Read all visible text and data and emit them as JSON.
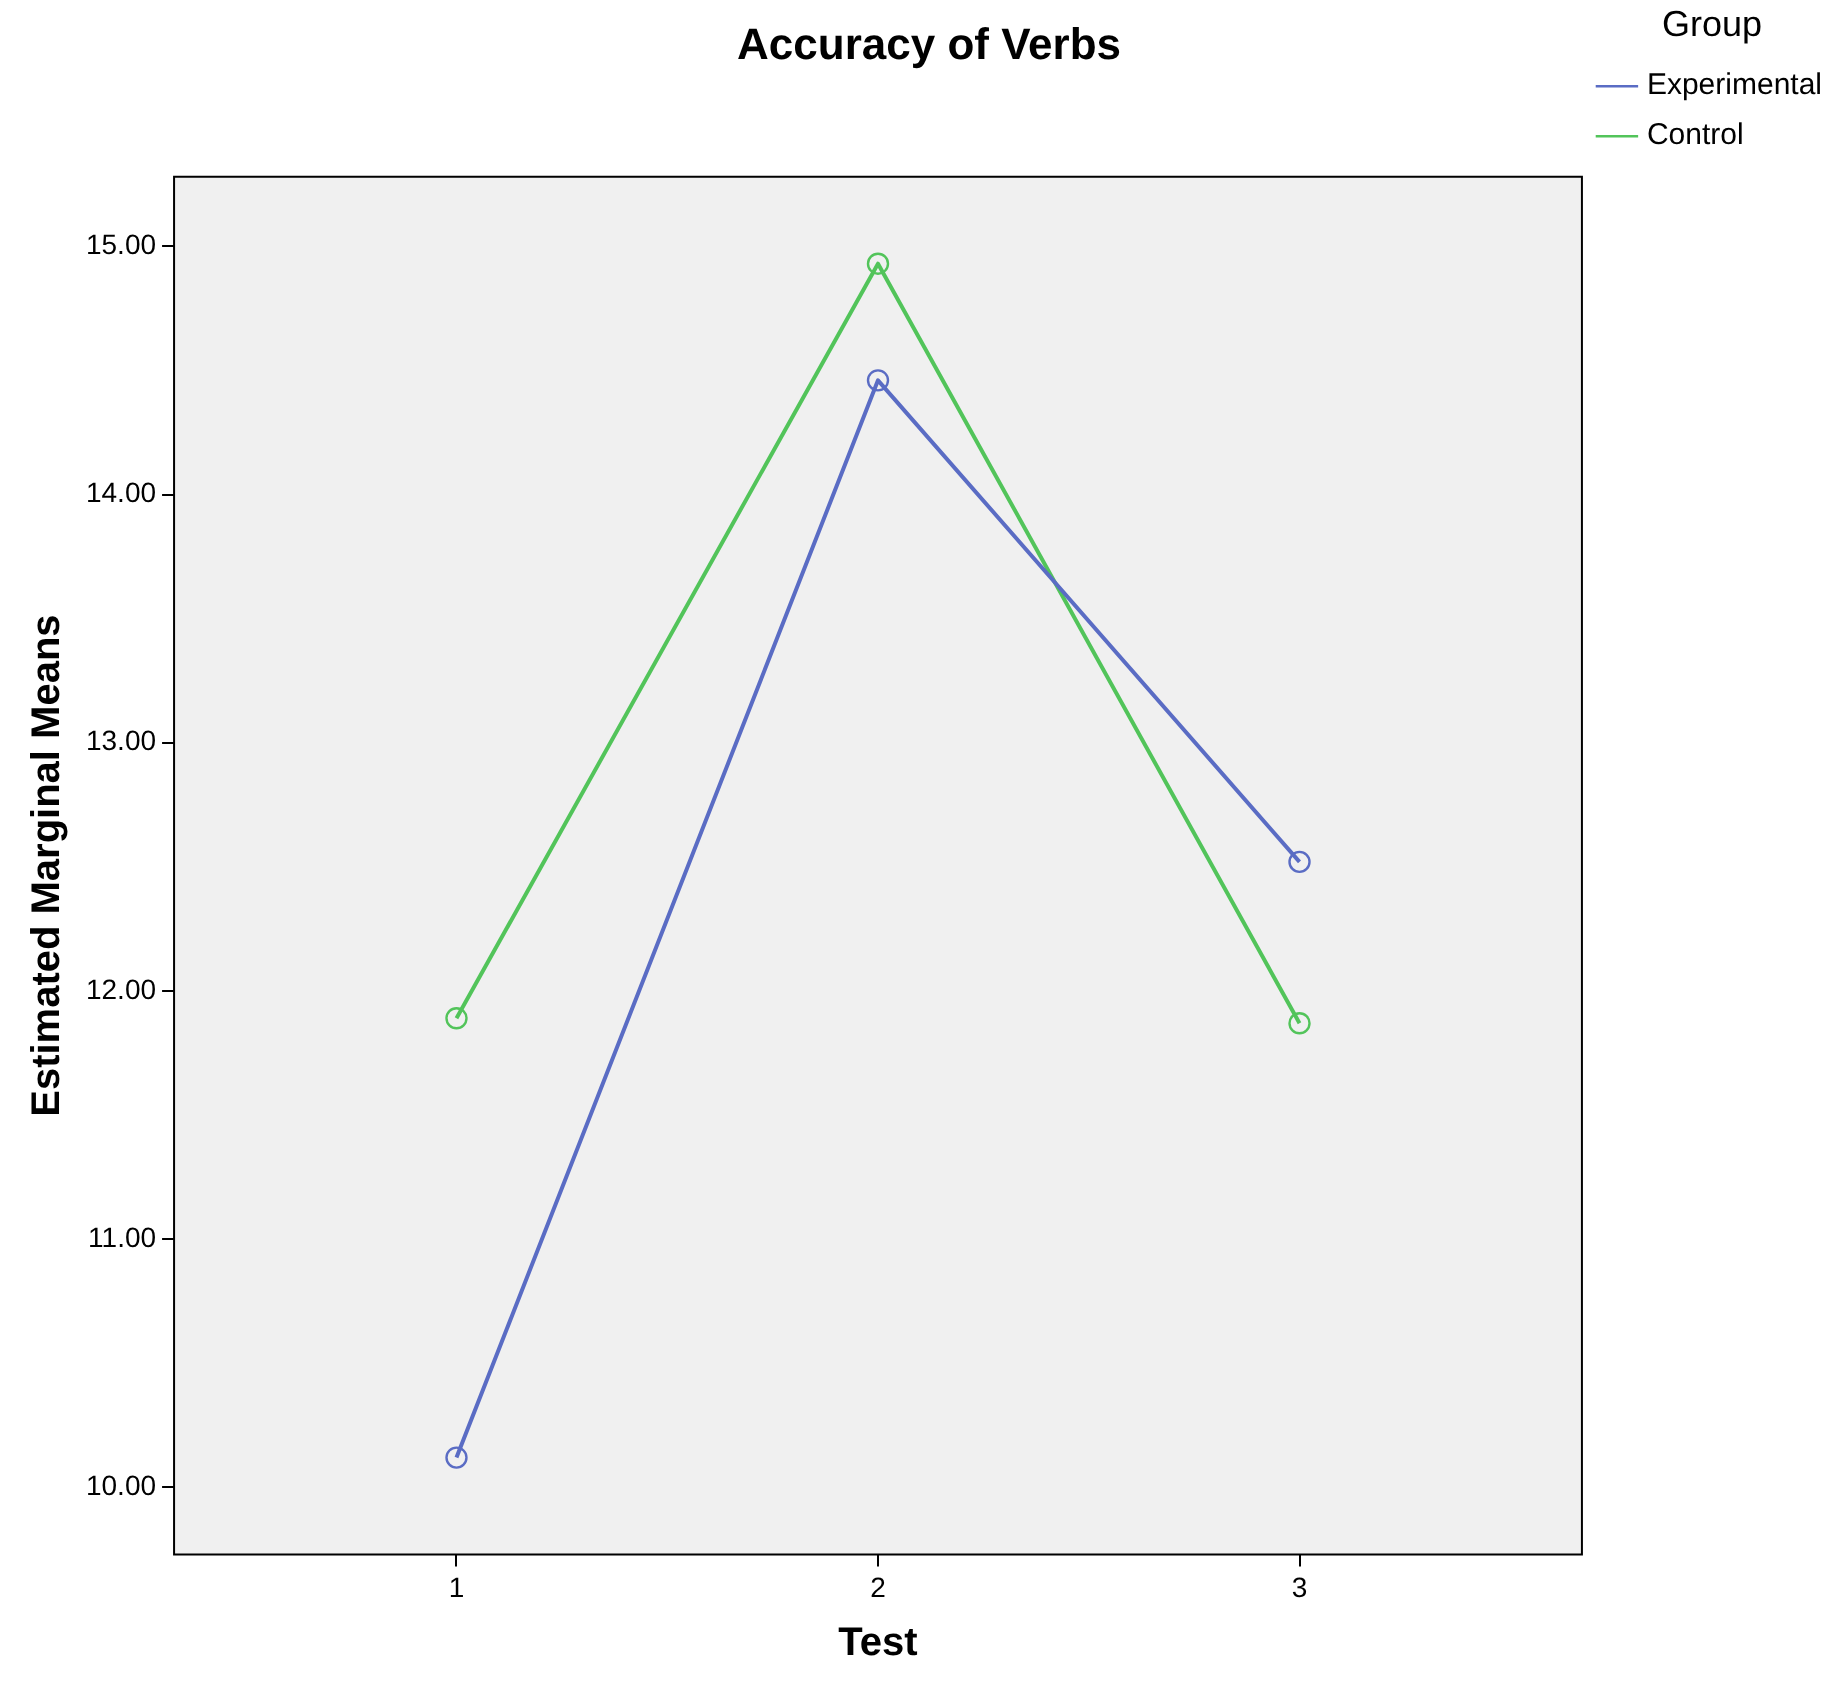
{
  "chart_data": {
    "type": "line",
    "title": "Accuracy of Verbs",
    "xlabel": "Test",
    "ylabel": "Estimated Marginal Means",
    "legend_title": "Group",
    "x": [
      1,
      2,
      3
    ],
    "xlim": [
      0.33,
      3.67
    ],
    "xticks": [
      1,
      2,
      3
    ],
    "ylim": [
      9.73,
      15.28
    ],
    "yticks": [
      {
        "value": 10,
        "label": "10.00"
      },
      {
        "value": 11,
        "label": "11.00"
      },
      {
        "value": 12,
        "label": "12.00"
      },
      {
        "value": 13,
        "label": "13.00"
      },
      {
        "value": 14,
        "label": "14.00"
      },
      {
        "value": 15,
        "label": "15.00"
      }
    ],
    "series": [
      {
        "name": "Experimental",
        "color": "#5a6cc4",
        "values": [
          10.12,
          14.46,
          12.52
        ]
      },
      {
        "name": "Control",
        "color": "#52c45a",
        "values": [
          11.89,
          14.93,
          11.87
        ]
      }
    ],
    "marker": "circle",
    "line_style": "solid",
    "legend": "top right",
    "grid": false
  }
}
